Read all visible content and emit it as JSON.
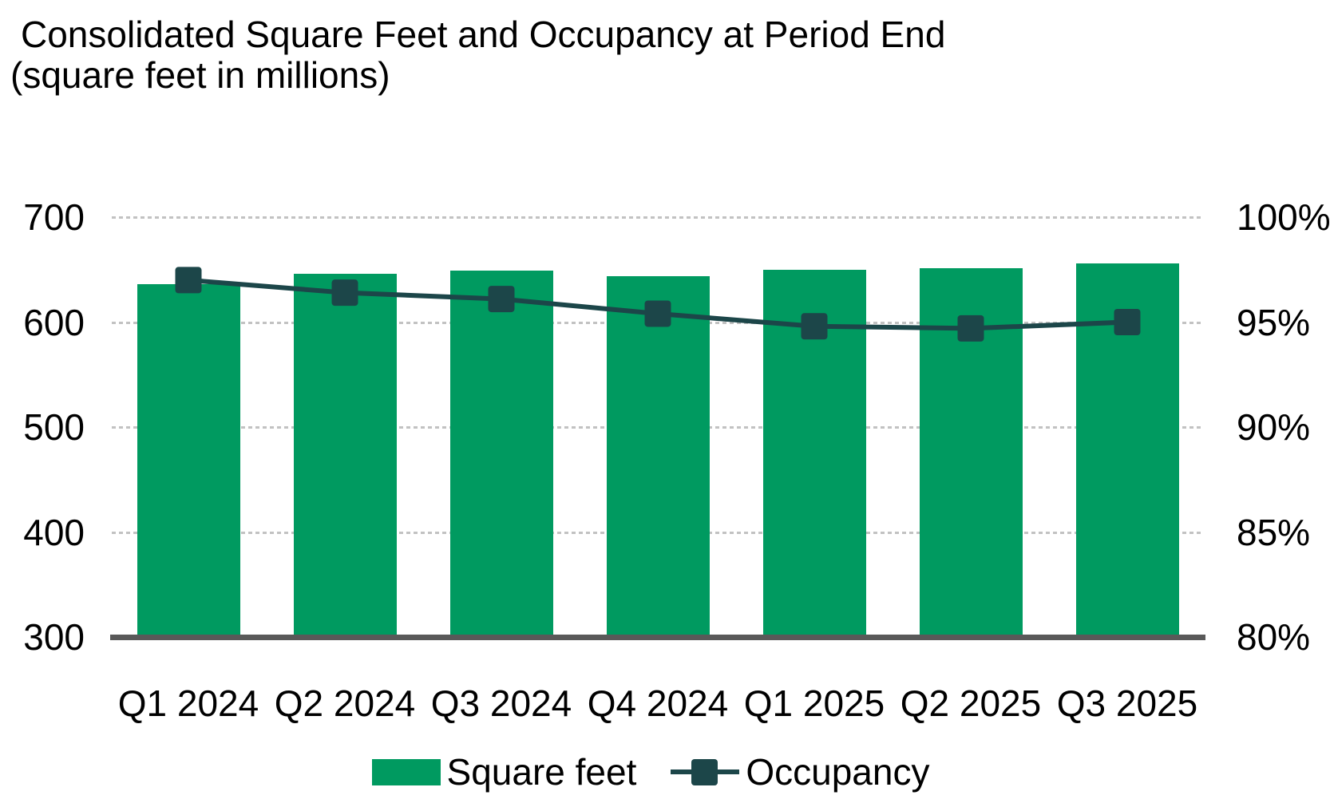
{
  "header": {
    "title": "Consolidated Square Feet and Occupancy at Period End",
    "subtitle": "(square feet in millions)"
  },
  "colors": {
    "bar_green": "#009a60",
    "line_teal": "#1c4649",
    "axis_gray": "#595959",
    "gridline_gray": "#c2c2c2",
    "text": "#000000"
  },
  "chart_data": {
    "type": "combo",
    "title": "Consolidated Square Feet and Occupancy at Period End",
    "subtitle": "(square feet in millions)",
    "categories": [
      "Q1 2024",
      "Q2 2024",
      "Q3 2024",
      "Q4 2024",
      "Q1 2025",
      "Q2 2025",
      "Q3 2025"
    ],
    "series": [
      {
        "name": "Square feet",
        "type": "bar",
        "axis": "left",
        "unit": "millions of square feet",
        "values": [
          636,
          646,
          649,
          644,
          650,
          651,
          656
        ],
        "color": "#009a60"
      },
      {
        "name": "Occupancy",
        "type": "line",
        "axis": "right",
        "unit": "percent",
        "marker": "square",
        "values": [
          97.0,
          96.4,
          96.1,
          95.4,
          94.8,
          94.7,
          95.0
        ],
        "color": "#1c4649"
      }
    ],
    "left_axis": {
      "min": 300,
      "max": 700,
      "tick_values": [
        700,
        600,
        500,
        400,
        300
      ],
      "tick_labels": [
        "700",
        "600",
        "500",
        "400",
        "300"
      ]
    },
    "right_axis": {
      "min": 80,
      "max": 100,
      "tick_values": [
        100,
        95,
        90,
        85,
        80
      ],
      "tick_labels": [
        "100%",
        "95%",
        "90%",
        "85%",
        "80%"
      ]
    },
    "grid": "horizontal-dashed",
    "legend_position": "bottom-center",
    "legend": [
      {
        "label": "Square feet",
        "swatch": "bar"
      },
      {
        "label": "Occupancy",
        "swatch": "line-square"
      }
    ]
  }
}
